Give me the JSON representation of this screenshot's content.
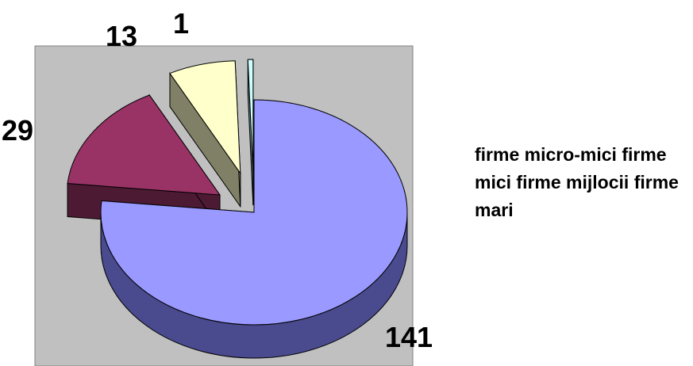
{
  "chart_data": {
    "type": "pie",
    "style": "3d-exploded",
    "background": "#c0c0c0",
    "slices": [
      {
        "value": 141,
        "label": "141",
        "color": "#9999ff",
        "side_color": "#4a4a8e"
      },
      {
        "value": 29,
        "label": "29",
        "color": "#993366",
        "side_color": "#4d1a33"
      },
      {
        "value": 13,
        "label": "13",
        "color": "#ffffcc",
        "side_color": "#808066"
      },
      {
        "value": 1,
        "label": "1",
        "color": "#ccffff",
        "side_color": "#668080"
      }
    ],
    "legend": {
      "position": "right",
      "entries": [
        "firme micro-mici",
        "firme mici",
        "firme mijlocii",
        "firme mari"
      ]
    }
  }
}
